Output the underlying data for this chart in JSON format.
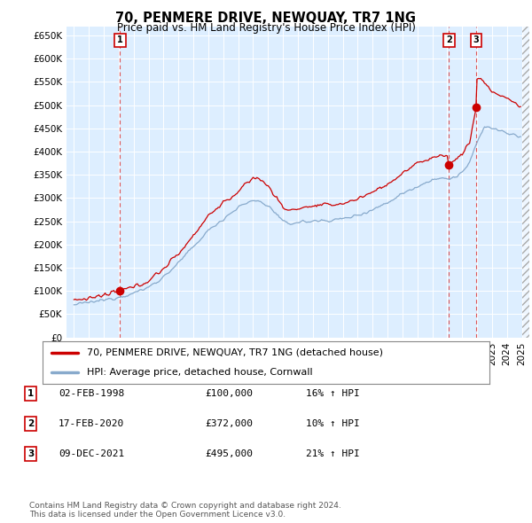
{
  "title": "70, PENMERE DRIVE, NEWQUAY, TR7 1NG",
  "subtitle": "Price paid vs. HM Land Registry's House Price Index (HPI)",
  "ylim": [
    0,
    670000
  ],
  "yticks": [
    0,
    50000,
    100000,
    150000,
    200000,
    250000,
    300000,
    350000,
    400000,
    450000,
    500000,
    550000,
    600000,
    650000
  ],
  "ytick_labels": [
    "£0",
    "£50K",
    "£100K",
    "£150K",
    "£200K",
    "£250K",
    "£300K",
    "£350K",
    "£400K",
    "£450K",
    "£500K",
    "£550K",
    "£600K",
    "£650K"
  ],
  "background_color": "#ffffff",
  "plot_bg_color": "#ddeeff",
  "grid_color": "#ffffff",
  "red_line_color": "#cc0000",
  "blue_line_color": "#88aacc",
  "sale_points": [
    {
      "year": 1998.09,
      "price": 100000,
      "label": "1"
    },
    {
      "year": 2020.12,
      "price": 372000,
      "label": "2"
    },
    {
      "year": 2021.93,
      "price": 495000,
      "label": "3"
    }
  ],
  "vline_color": "#dd4444",
  "legend_entries": [
    {
      "label": "70, PENMERE DRIVE, NEWQUAY, TR7 1NG (detached house)",
      "color": "#cc0000"
    },
    {
      "label": "HPI: Average price, detached house, Cornwall",
      "color": "#88aacc"
    }
  ],
  "table_rows": [
    {
      "num": "1",
      "date": "02-FEB-1998",
      "price": "£100,000",
      "hpi": "16% ↑ HPI"
    },
    {
      "num": "2",
      "date": "17-FEB-2020",
      "price": "£372,000",
      "hpi": "10% ↑ HPI"
    },
    {
      "num": "3",
      "date": "09-DEC-2021",
      "price": "£495,000",
      "hpi": "21% ↑ HPI"
    }
  ],
  "footer": "Contains HM Land Registry data © Crown copyright and database right 2024.\nThis data is licensed under the Open Government Licence v3.0.",
  "xmin": 1995.0,
  "xmax": 2025.5,
  "hatch_start": 2025.0,
  "title_fontsize": 10.5,
  "subtitle_fontsize": 8.5,
  "tick_fontsize": 7.5,
  "legend_fontsize": 8,
  "table_fontsize": 8,
  "footer_fontsize": 6.5
}
